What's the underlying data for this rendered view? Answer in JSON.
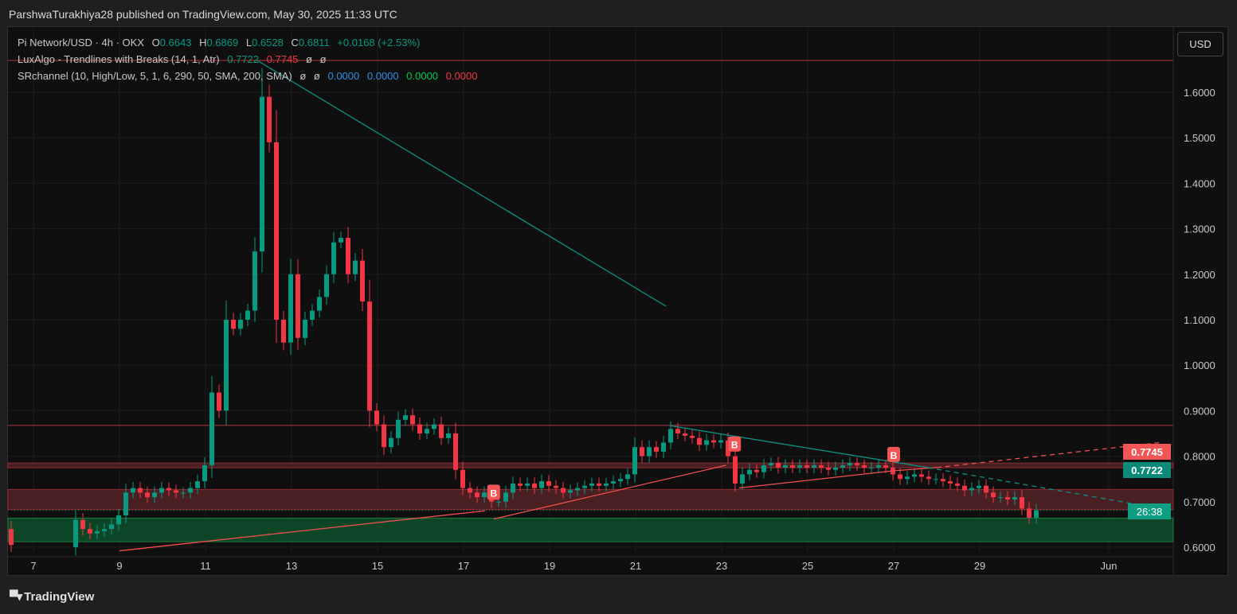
{
  "publisher": "ParshwaTurakhiya28 published on TradingView.com, May 30, 2025 11:33 UTC",
  "legend": {
    "symbol": "Pi Network/USD · 4h · OKX",
    "o_label": "O",
    "o": "0.6643",
    "h_label": "H",
    "h": "0.6869",
    "l_label": "L",
    "l": "0.6528",
    "c_label": "C",
    "c": "0.6811",
    "change": "+0.0168 (+2.53%)",
    "ind1": "LuxAlgo - Trendlines with Breaks (14, 1, Atr)",
    "ind1_v1": "0.7722",
    "ind1_v2": "0.7745",
    "ind1_n1": "ø",
    "ind1_n2": "ø",
    "ind2": "SRchannel (10, High/Low, 5, 1, 6, 290, 50, SMA, 200, SMA)",
    "ind2_n1": "ø",
    "ind2_n2": "ø",
    "ind2_v1": "0.0000",
    "ind2_v2": "0.0000",
    "ind2_v3": "0.0000",
    "ind2_v4": "0.0000"
  },
  "currency_button": "USD",
  "price_labels": {
    "upper": "0.7745",
    "lower": "0.7722",
    "countdown": "26:38"
  },
  "footer_logo": "TradingView",
  "colors": {
    "up": "#089981",
    "down": "#f23645",
    "teal_line": "#0d8f82",
    "red_line": "#f0504f",
    "blue": "#2f8fe8",
    "green": "#00c853"
  },
  "chart_data": {
    "type": "candlestick",
    "interval": "4h",
    "ylim": [
      0.58,
      1.7
    ],
    "yticks": [
      "0.6000",
      "0.7000",
      "0.8000",
      "0.9000",
      "1.0000",
      "1.1000",
      "1.2000",
      "1.3000",
      "1.4000",
      "1.5000",
      "1.6000"
    ],
    "xticks": [
      {
        "day": 7,
        "label": "7"
      },
      {
        "day": 9,
        "label": "9"
      },
      {
        "day": 11,
        "label": "11"
      },
      {
        "day": 13,
        "label": "13"
      },
      {
        "day": 15,
        "label": "15"
      },
      {
        "day": 17,
        "label": "17"
      },
      {
        "day": 19,
        "label": "19"
      },
      {
        "day": 21,
        "label": "21"
      },
      {
        "day": 23,
        "label": "23"
      },
      {
        "day": 25,
        "label": "25"
      },
      {
        "day": 27,
        "label": "27"
      },
      {
        "day": 29,
        "label": "29"
      },
      {
        "day": 32,
        "label": "Jun"
      }
    ],
    "start_day": 6.5,
    "first_open": 0.64,
    "close": [
      0.605,
      null,
      null,
      null,
      null,
      null,
      null,
      null,
      null,
      0.66,
      0.64,
      0.63,
      0.635,
      0.64,
      0.65,
      0.67,
      0.72,
      0.73,
      0.72,
      0.71,
      0.72,
      0.73,
      0.725,
      0.72,
      0.72,
      0.73,
      0.745,
      0.78,
      0.94,
      0.9,
      1.1,
      1.08,
      1.1,
      1.12,
      1.25,
      1.59,
      1.49,
      1.1,
      1.05,
      1.2,
      1.06,
      1.1,
      1.12,
      1.15,
      1.2,
      1.27,
      1.28,
      1.2,
      1.23,
      1.14,
      0.9,
      0.87,
      0.82,
      0.84,
      0.88,
      0.89,
      0.87,
      0.85,
      0.86,
      0.87,
      0.84,
      0.85,
      0.77,
      0.73,
      0.72,
      0.71,
      0.72,
      0.7,
      0.7,
      0.72,
      0.74,
      0.735,
      0.74,
      0.73,
      0.745,
      0.735,
      0.73,
      0.72,
      0.725,
      0.73,
      0.735,
      0.74,
      0.735,
      0.74,
      0.745,
      0.75,
      0.76,
      0.82,
      0.8,
      0.82,
      0.81,
      0.83,
      0.86,
      0.85,
      0.845,
      0.84,
      0.825,
      0.835,
      0.83,
      0.835,
      0.8,
      0.74,
      0.76,
      0.77,
      0.765,
      0.78,
      0.785,
      0.775,
      0.78,
      0.775,
      0.78,
      0.775,
      0.78,
      0.775,
      0.77,
      0.775,
      0.78,
      0.785,
      0.78,
      0.775,
      0.775,
      0.78,
      0.775,
      0.76,
      0.75,
      0.755,
      0.76,
      0.755,
      0.75,
      0.75,
      0.745,
      0.74,
      0.735,
      0.725,
      0.73,
      0.735,
      0.72,
      0.71,
      0.71,
      0.705,
      0.71,
      0.685,
      0.665,
      0.6811
    ],
    "trendlines": [
      {
        "color": "teal",
        "from": [
          12.2,
          1.67
        ],
        "to": [
          21.7,
          1.13
        ],
        "style": "solid"
      },
      {
        "color": "red",
        "from": [
          9,
          0.592
        ],
        "to": [
          17.5,
          0.68
        ],
        "style": "solid"
      },
      {
        "color": "red",
        "from": [
          17.7,
          0.662
        ],
        "to": [
          23.1,
          0.78
        ],
        "style": "solid"
      },
      {
        "color": "red",
        "from": [
          23.4,
          0.73
        ],
        "to": [
          27,
          0.768
        ],
        "style": "solid"
      },
      {
        "color": "red",
        "from": [
          27,
          0.768
        ],
        "to": [
          28,
          0.775
        ],
        "style": "solid"
      },
      {
        "color": "red",
        "from": [
          28,
          0.775
        ],
        "to": [
          33.2,
          0.83
        ],
        "style": "dashed"
      },
      {
        "color": "teal",
        "from": [
          21.8,
          0.867
        ],
        "to": [
          27.8,
          0.775
        ],
        "style": "solid"
      },
      {
        "color": "teal",
        "from": [
          27.8,
          0.775
        ],
        "to": [
          33.2,
          0.685
        ],
        "style": "dashed"
      }
    ],
    "levels": [
      {
        "price": 1.67,
        "kind": "line"
      },
      {
        "price": 0.868,
        "kind": "line"
      },
      {
        "from": 0.7745,
        "to": 0.785,
        "kind": "red-band"
      },
      {
        "from": 0.683,
        "to": 0.727,
        "kind": "red-zone"
      },
      {
        "price": 0.6811,
        "kind": "dotted"
      },
      {
        "from": 0.612,
        "to": 0.664,
        "kind": "green-zone"
      }
    ],
    "break_markers": [
      {
        "day": 17.7,
        "price": 0.72,
        "label": "B"
      },
      {
        "day": 23.3,
        "price": 0.826,
        "label": "B"
      },
      {
        "day": 27,
        "price": 0.803,
        "label": "B"
      }
    ]
  }
}
